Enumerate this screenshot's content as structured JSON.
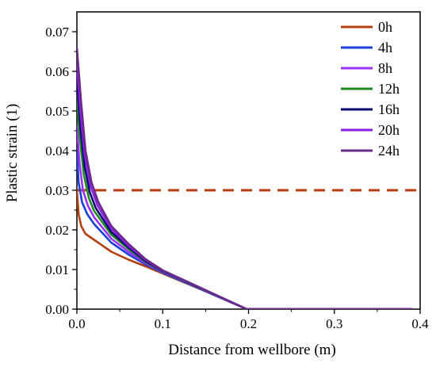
{
  "chart_data": {
    "type": "line",
    "title": "",
    "xlabel": "Distance from wellbore (m)",
    "ylabel": "Plastic strain (1)",
    "xlim": [
      0,
      0.4
    ],
    "ylim": [
      0,
      0.075
    ],
    "xticks": [
      "0.0",
      "0.1",
      "0.2",
      "0.3",
      "0.4"
    ],
    "yticks": [
      "0.00",
      "0.01",
      "0.02",
      "0.03",
      "0.04",
      "0.05",
      "0.06",
      "0.07"
    ],
    "grid": false,
    "legend_position": "top-right",
    "series": [
      {
        "name": "0h",
        "color": "#b5400f",
        "points": [
          [
            0.0,
            0.03
          ],
          [
            0.002,
            0.024
          ],
          [
            0.005,
            0.021
          ],
          [
            0.01,
            0.019
          ],
          [
            0.02,
            0.0175
          ],
          [
            0.04,
            0.0145
          ],
          [
            0.06,
            0.0125
          ],
          [
            0.08,
            0.0108
          ],
          [
            0.1,
            0.009
          ],
          [
            0.15,
            0.0045
          ],
          [
            0.198,
            0.0
          ],
          [
            0.39,
            0.0
          ]
        ]
      },
      {
        "name": "4h",
        "color": "#1a3fdc",
        "points": [
          [
            0.0,
            0.04
          ],
          [
            0.002,
            0.032
          ],
          [
            0.006,
            0.027
          ],
          [
            0.012,
            0.024
          ],
          [
            0.02,
            0.0215
          ],
          [
            0.04,
            0.0168
          ],
          [
            0.06,
            0.0138
          ],
          [
            0.08,
            0.0113
          ],
          [
            0.1,
            0.0092
          ],
          [
            0.15,
            0.0045
          ],
          [
            0.198,
            0.0
          ],
          [
            0.39,
            0.0
          ]
        ]
      },
      {
        "name": "8h",
        "color": "#9b30ff",
        "points": [
          [
            0.0,
            0.046
          ],
          [
            0.003,
            0.037
          ],
          [
            0.007,
            0.03
          ],
          [
            0.013,
            0.026
          ],
          [
            0.02,
            0.0232
          ],
          [
            0.04,
            0.0178
          ],
          [
            0.06,
            0.0145
          ],
          [
            0.08,
            0.0116
          ],
          [
            0.1,
            0.0094
          ],
          [
            0.15,
            0.0046
          ],
          [
            0.198,
            0.0
          ],
          [
            0.39,
            0.0
          ]
        ]
      },
      {
        "name": "12h",
        "color": "#1f8a1f",
        "points": [
          [
            0.0,
            0.054
          ],
          [
            0.003,
            0.044
          ],
          [
            0.008,
            0.034
          ],
          [
            0.014,
            0.028
          ],
          [
            0.02,
            0.0248
          ],
          [
            0.04,
            0.0188
          ],
          [
            0.06,
            0.0152
          ],
          [
            0.08,
            0.0119
          ],
          [
            0.1,
            0.0095
          ],
          [
            0.15,
            0.0046
          ],
          [
            0.198,
            0.0
          ],
          [
            0.39,
            0.0
          ]
        ]
      },
      {
        "name": "16h",
        "color": "#0a0a6e",
        "points": [
          [
            0.0,
            0.058
          ],
          [
            0.004,
            0.046
          ],
          [
            0.009,
            0.036
          ],
          [
            0.015,
            0.0295
          ],
          [
            0.022,
            0.0255
          ],
          [
            0.04,
            0.0195
          ],
          [
            0.06,
            0.0156
          ],
          [
            0.08,
            0.0121
          ],
          [
            0.1,
            0.0096
          ],
          [
            0.15,
            0.0047
          ],
          [
            0.198,
            0.0
          ],
          [
            0.39,
            0.0
          ]
        ]
      },
      {
        "name": "20h",
        "color": "#8a1ee6",
        "points": [
          [
            0.0,
            0.062
          ],
          [
            0.004,
            0.05
          ],
          [
            0.009,
            0.039
          ],
          [
            0.016,
            0.031
          ],
          [
            0.024,
            0.0262
          ],
          [
            0.04,
            0.0203
          ],
          [
            0.06,
            0.016
          ],
          [
            0.08,
            0.0124
          ],
          [
            0.1,
            0.0097
          ],
          [
            0.15,
            0.0047
          ],
          [
            0.198,
            0.0
          ],
          [
            0.39,
            0.0
          ]
        ]
      },
      {
        "name": "24h",
        "color": "#6a2a8a",
        "points": [
          [
            0.0,
            0.066
          ],
          [
            0.005,
            0.052
          ],
          [
            0.01,
            0.04
          ],
          [
            0.017,
            0.032
          ],
          [
            0.025,
            0.027
          ],
          [
            0.04,
            0.021
          ],
          [
            0.06,
            0.0165
          ],
          [
            0.08,
            0.0126
          ],
          [
            0.1,
            0.0098
          ],
          [
            0.15,
            0.0048
          ],
          [
            0.198,
            0.0
          ],
          [
            0.39,
            0.0
          ]
        ]
      }
    ],
    "threshold_line": {
      "y": 0.03,
      "color": "#b5400f",
      "style": "dashed"
    }
  }
}
